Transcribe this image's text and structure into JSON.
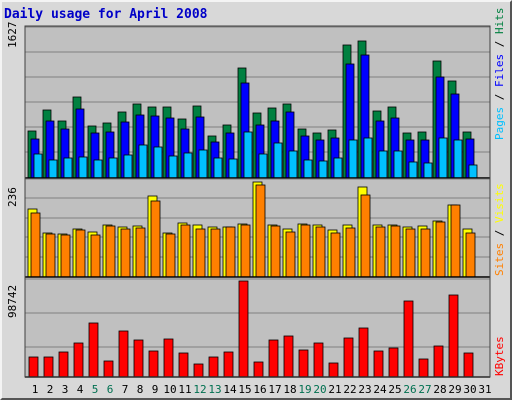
{
  "chart_data": {
    "type": "bar",
    "title": "Daily usage for April 2008",
    "categories": [
      "1",
      "2",
      "3",
      "4",
      "5",
      "6",
      "7",
      "8",
      "9",
      "10",
      "11",
      "12",
      "13",
      "14",
      "15",
      "16",
      "17",
      "18",
      "19",
      "20",
      "21",
      "22",
      "23",
      "24",
      "25",
      "26",
      "27",
      "28",
      "29",
      "30",
      "31"
    ],
    "weekend_days": [
      "5",
      "6",
      "12",
      "13",
      "19",
      "20",
      "26",
      "27"
    ],
    "panels": [
      {
        "id": "hits",
        "max_label": "1627",
        "ylim": [
          0,
          1627
        ],
        "series": [
          {
            "name": "Hits",
            "color": "#008040",
            "values": [
              510,
              740,
              620,
              880,
              570,
              600,
              720,
              810,
              780,
              770,
              640,
              790,
              460,
              580,
              1200,
              710,
              760,
              810,
              540,
              490,
              520,
              1450,
              1500,
              730,
              770,
              490,
              500,
              1280,
              1060,
              500,
              0
            ]
          },
          {
            "name": "Files",
            "color": "#0000ff",
            "values": [
              430,
              620,
              530,
              750,
              490,
              500,
              610,
              690,
              680,
              650,
              540,
              670,
              390,
              490,
              1040,
              580,
              620,
              720,
              460,
              420,
              440,
              1240,
              1340,
              620,
              650,
              420,
              420,
              1100,
              920,
              430,
              0
            ]
          },
          {
            "name": "Pages",
            "color": "#00c0ff",
            "values": [
              260,
              200,
              220,
              230,
              200,
              220,
              250,
              360,
              340,
              240,
              270,
              310,
              220,
              210,
              500,
              260,
              380,
              300,
              200,
              190,
              220,
              420,
              440,
              290,
              290,
              180,
              160,
              440,
              410,
              140,
              0
            ]
          }
        ]
      },
      {
        "id": "visits",
        "max_label": "236",
        "ylim": [
          0,
          236
        ],
        "series": [
          {
            "name": "Visits",
            "color": "#ffff00",
            "values": [
              170,
              110,
              108,
              120,
              112,
              130,
              125,
              126,
              202,
              110,
              135,
              128,
              125,
              125,
              132,
              236,
              130,
              118,
              132,
              128,
              116,
              128,
              223,
              130,
              130,
              124,
              126,
              140,
              180,
              120,
              0
            ]
          },
          {
            "name": "Sites",
            "color": "#ff8000",
            "values": [
              160,
              106,
              104,
              116,
              104,
              126,
              118,
              122,
              190,
              106,
              128,
              120,
              120,
              124,
              128,
              228,
              126,
              112,
              128,
              124,
              110,
              122,
              203,
              124,
              126,
              118,
              120,
              136,
              180,
              110,
              0
            ]
          }
        ]
      },
      {
        "id": "kbytes",
        "max_label": "98742",
        "ylim": [
          0,
          98742
        ],
        "series": [
          {
            "name": "KBytes",
            "color": "#ff0000",
            "values": [
              21000,
              21000,
              26000,
              35000,
              56000,
              16000,
              47000,
              38000,
              27000,
              39000,
              25000,
              13000,
              21000,
              26000,
              98742,
              15000,
              38000,
              42000,
              28000,
              35000,
              14000,
              40000,
              50000,
              27000,
              30000,
              78000,
              19000,
              32000,
              84000,
              25000,
              0
            ]
          }
        ]
      }
    ],
    "right_labels": {
      "hits": [
        "Pages",
        "Files",
        "Hits"
      ],
      "visits": [
        "Sites",
        "Visits"
      ],
      "kbytes": [
        "KBytes"
      ]
    },
    "colors": {
      "plot_bg": "#c0c0c0",
      "frame_bg": "#d8d8d8",
      "title": "#0000c8",
      "label_dark": "#000000",
      "label_weekend": "#007050",
      "separator": "#000000"
    }
  }
}
